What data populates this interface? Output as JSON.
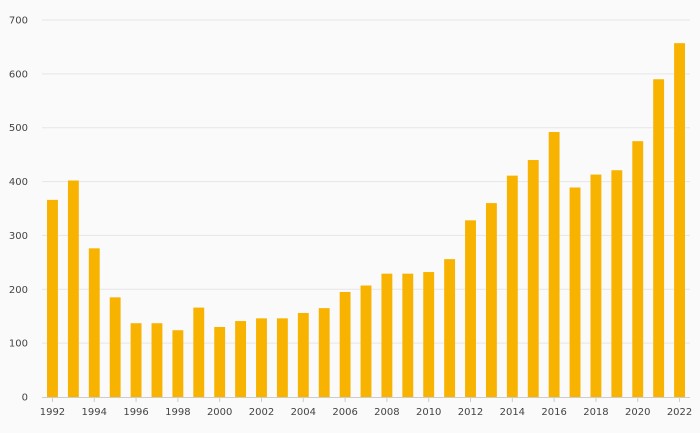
{
  "chart_data": {
    "type": "bar",
    "categories": [
      "1992",
      "1993",
      "1994",
      "1995",
      "1996",
      "1997",
      "1998",
      "1999",
      "2000",
      "2001",
      "2002",
      "2003",
      "2004",
      "2005",
      "2006",
      "2007",
      "2008",
      "2009",
      "2010",
      "2011",
      "2012",
      "2013",
      "2014",
      "2015",
      "2016",
      "2017",
      "2018",
      "2019",
      "2020",
      "2021",
      "2022"
    ],
    "x_tick_labels": [
      "1992",
      "1994",
      "1996",
      "1998",
      "2000",
      "2002",
      "2004",
      "2006",
      "2008",
      "2010",
      "2012",
      "2014",
      "2016",
      "2018",
      "2020",
      "2022"
    ],
    "values": [
      366,
      402,
      276,
      185,
      137,
      137,
      124,
      166,
      130,
      141,
      146,
      146,
      156,
      165,
      195,
      207,
      229,
      229,
      232,
      256,
      328,
      360,
      411,
      440,
      492,
      389,
      413,
      421,
      475,
      590,
      657
    ],
    "title": "",
    "xlabel": "",
    "ylabel": "",
    "ylim": [
      0,
      700
    ],
    "y_ticks": [
      0,
      100,
      200,
      300,
      400,
      500,
      600,
      700
    ],
    "grid": true,
    "legend": "none",
    "bar_color": "#f8b200",
    "background_color": "#fafafa"
  }
}
